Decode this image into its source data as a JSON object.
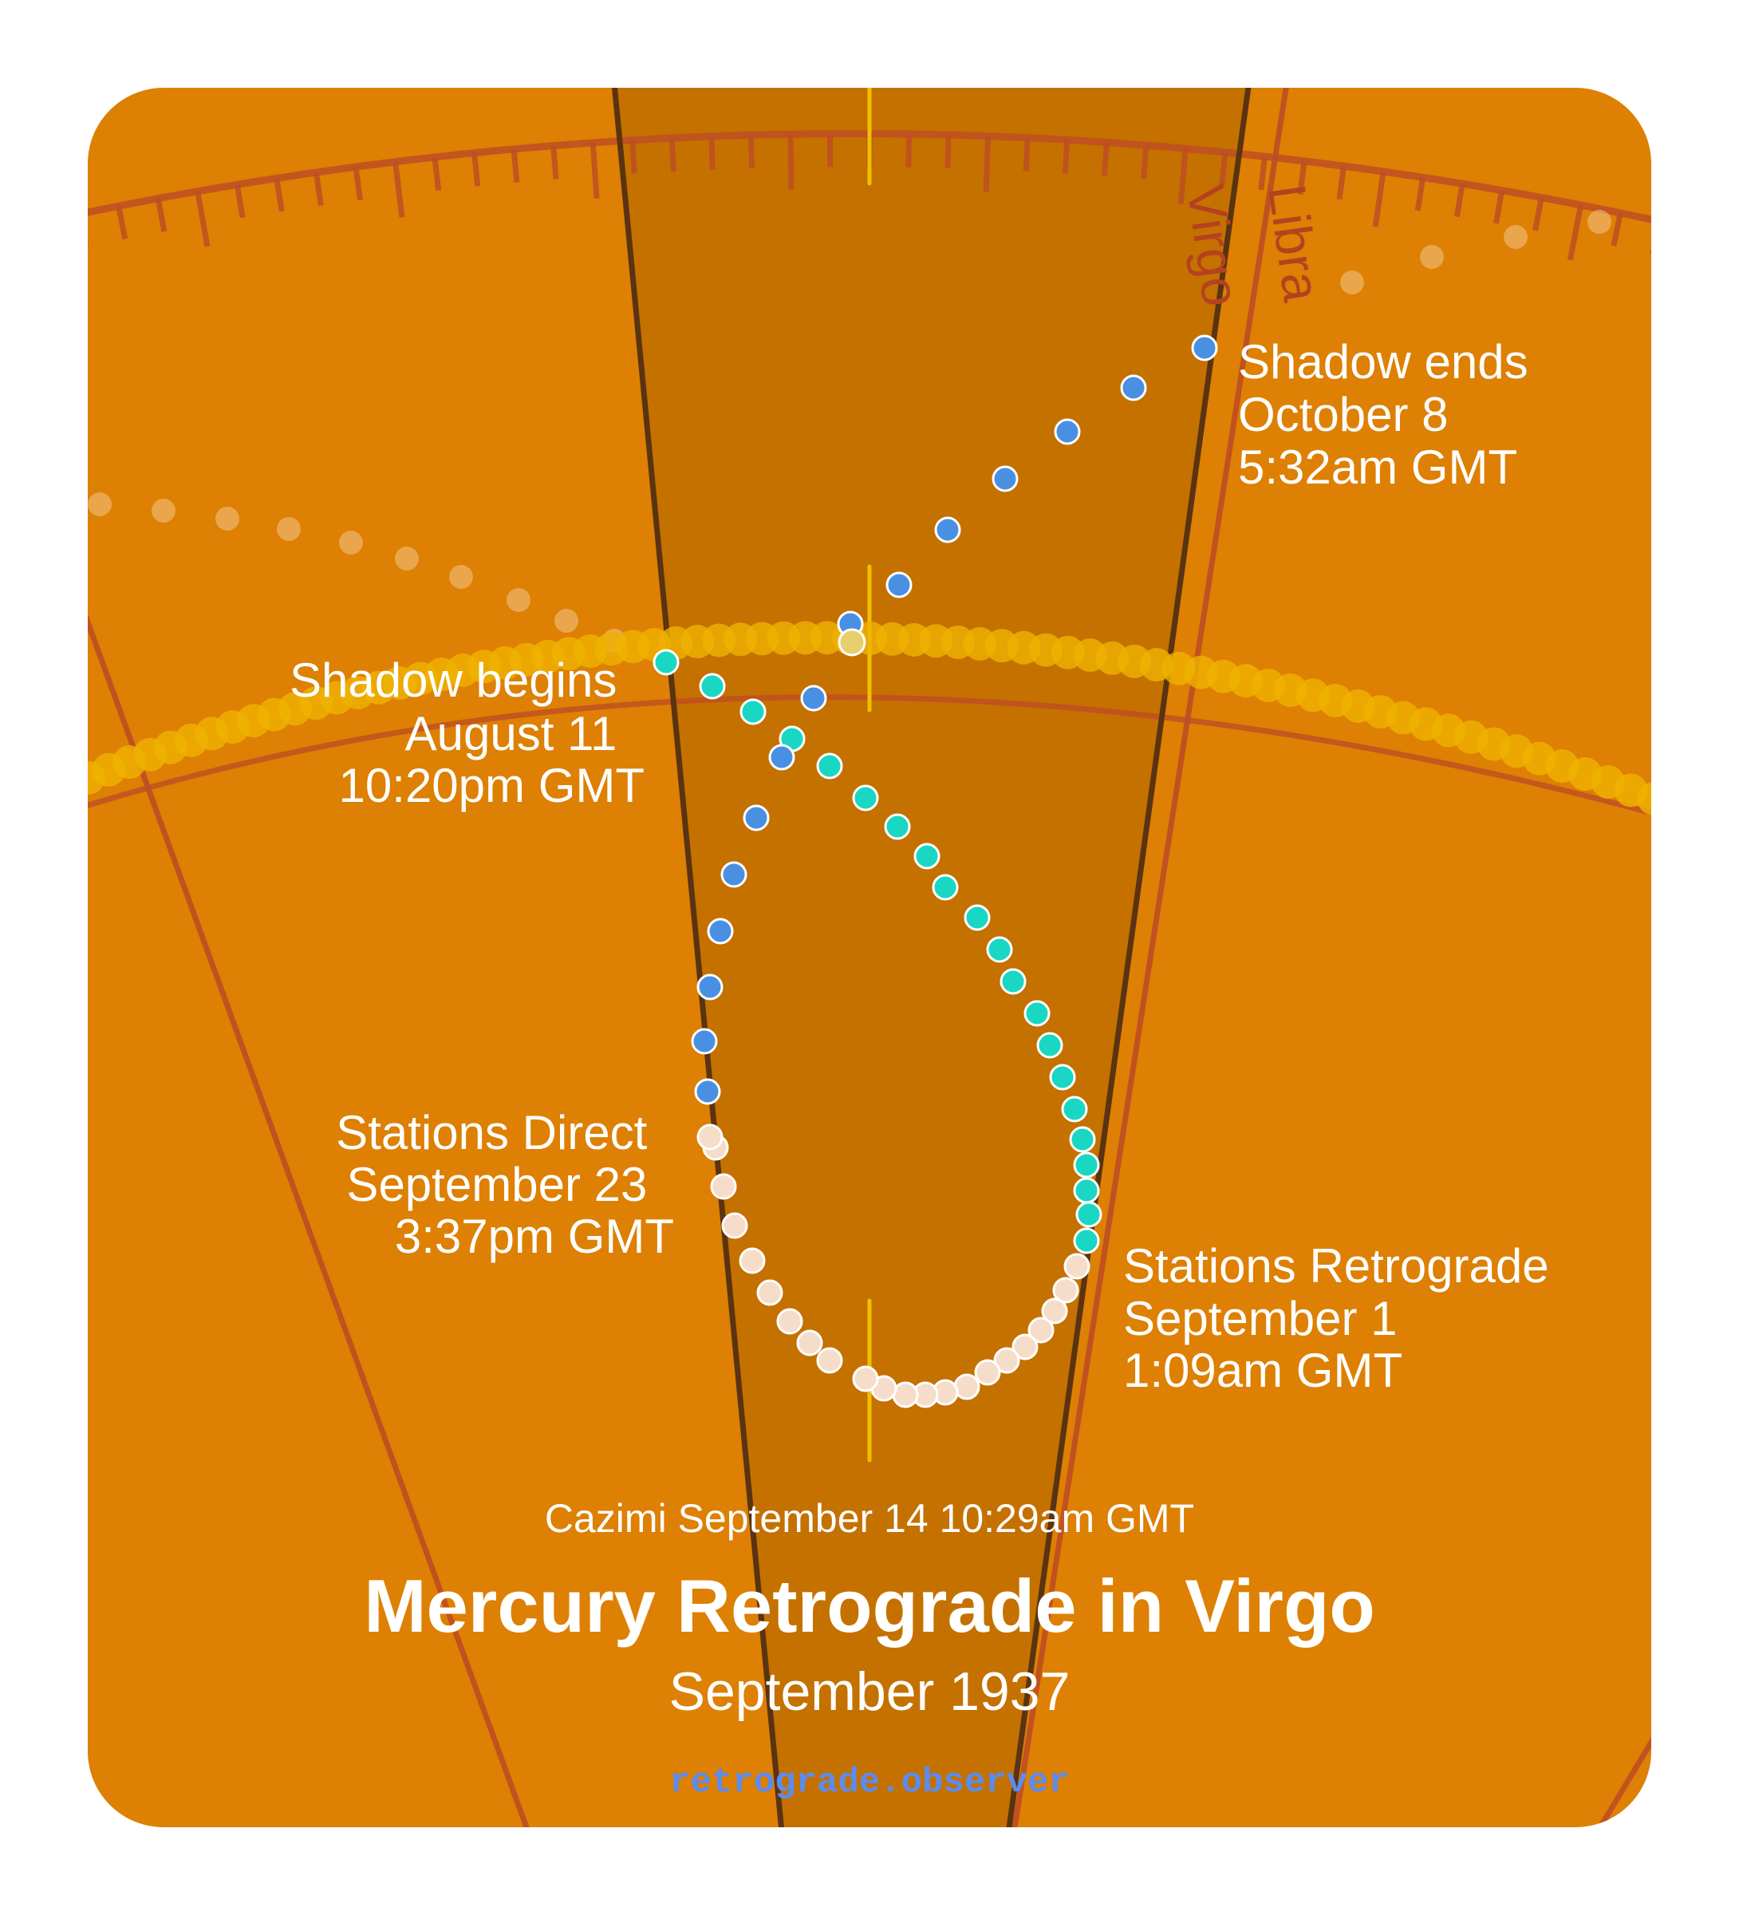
{
  "colors": {
    "card": "#dd8003",
    "shadow_band": "#c47100",
    "border_line": "#5a3311",
    "zodiac_line": "#bf4e23",
    "sun_path": "#f0b400",
    "venus_path": "#f2c488",
    "shadow_direct": "#19d7c3",
    "retrograde": "#f5ddc9",
    "post_direct": "#4a90e2",
    "dot_stroke": "#ffffff"
  },
  "signs": {
    "left": "Virgo",
    "right": "Libra"
  },
  "labels": {
    "shadow_begins": [
      "Shadow begins",
      "August 11",
      "10:20pm GMT"
    ],
    "shadow_ends": [
      "Shadow ends",
      "October 8",
      "5:32am GMT"
    ],
    "stations_retrograde": [
      "Stations Retrograde",
      "September 1",
      "1:09am GMT"
    ],
    "stations_direct": [
      "Stations Direct",
      "September 23",
      "3:37pm GMT"
    ]
  },
  "cazimi": "Cazimi September 14 10:29am GMT",
  "title": "Mercury Retrograde in Virgo",
  "subtitle": "September 1937",
  "site": "retrograde.observer"
}
